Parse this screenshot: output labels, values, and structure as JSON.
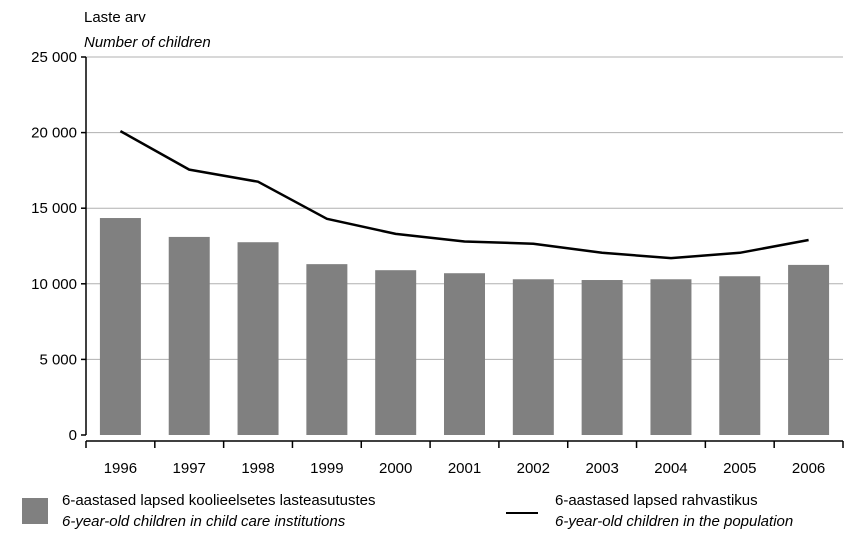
{
  "chart_data": {
    "type": "bar",
    "categories": [
      "1996",
      "1997",
      "1998",
      "1999",
      "2000",
      "2001",
      "2002",
      "2003",
      "2004",
      "2005",
      "2006"
    ],
    "series": [
      {
        "name": "6-aastased lapsed koolieelsetes lasteasutustes",
        "name_en": "6-year-old children in child care institutions",
        "type": "bar",
        "color": "#808080",
        "values": [
          14350,
          13100,
          12750,
          11300,
          10900,
          10700,
          10300,
          10250,
          10300,
          10500,
          11250
        ]
      },
      {
        "name": "6-aastased lapsed rahvastikus",
        "name_en": "6-year-old children in the population",
        "type": "line",
        "color": "#000000",
        "values": [
          20100,
          17550,
          16750,
          14300,
          13300,
          12800,
          12650,
          12050,
          11700,
          12050,
          12900
        ]
      }
    ],
    "ylabel": "Laste arv",
    "ylabel_en": "Number of children",
    "ylim": [
      0,
      25000
    ],
    "yticks": [
      0,
      5000,
      10000,
      15000,
      20000,
      25000
    ],
    "ytick_labels": [
      "0",
      "5 000",
      "10 000",
      "15 000",
      "20 000",
      "25 000"
    ],
    "grid": true,
    "legend_position": "bottom"
  }
}
